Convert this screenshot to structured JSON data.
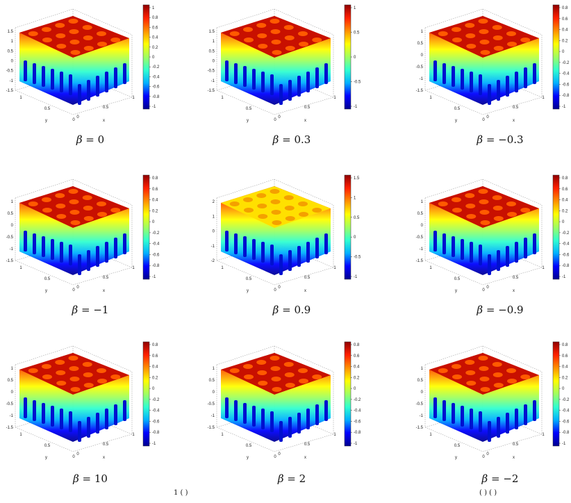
{
  "figure": {
    "panels": [
      {
        "caption_prefix": "β",
        "caption_value": "= 0",
        "colorbar": {
          "ticks": [
            "1",
            "0.8",
            "0.6",
            "0.4",
            "0.2",
            "0",
            "-0.2",
            "-0.4",
            "-0.6",
            "-0.8",
            "-1"
          ]
        },
        "z_ticks": [
          "1.5",
          "1",
          "0.5",
          "0",
          "-0.5",
          "-1",
          "-1.5"
        ],
        "surface_style": "red"
      },
      {
        "caption_prefix": "β",
        "caption_value": "= 0.3",
        "colorbar": {
          "ticks": [
            "1",
            "0.5",
            "0",
            "-0.5",
            "-1"
          ]
        },
        "z_ticks": [
          "1.5",
          "1",
          "0.5",
          "0",
          "-0.5",
          "-1",
          "-1.5"
        ],
        "surface_style": "red"
      },
      {
        "caption_prefix": "β",
        "caption_value": "= −0.3",
        "colorbar": {
          "ticks": [
            "0.8",
            "0.6",
            "0.4",
            "0.2",
            "0",
            "-0.2",
            "-0.4",
            "-0.6",
            "-0.8",
            "-1"
          ]
        },
        "z_ticks": [
          "1",
          "0.5",
          "0",
          "-0.5",
          "-1",
          "-1.5"
        ],
        "surface_style": "red"
      },
      {
        "caption_prefix": "β",
        "caption_value": "= −1",
        "colorbar": {
          "ticks": [
            "0.8",
            "0.6",
            "0.4",
            "0.2",
            "0",
            "-0.2",
            "-0.4",
            "-0.6",
            "-0.8",
            "-1"
          ]
        },
        "z_ticks": [
          "1",
          "0.5",
          "0",
          "-0.5",
          "-1",
          "-1.5"
        ],
        "surface_style": "red"
      },
      {
        "caption_prefix": "β",
        "caption_value": "= 0.9",
        "colorbar": {
          "ticks": [
            "1.5",
            "1",
            "0.5",
            "0",
            "-0.5",
            "-1"
          ]
        },
        "z_ticks": [
          "2",
          "1",
          "0",
          "-1",
          "-2"
        ],
        "surface_style": "yellow"
      },
      {
        "caption_prefix": "β",
        "caption_value": "= −0.9",
        "colorbar": {
          "ticks": [
            "0.8",
            "0.6",
            "0.4",
            "0.2",
            "0",
            "-0.2",
            "-0.4",
            "-0.6",
            "-0.8",
            "-1"
          ]
        },
        "z_ticks": [
          "1",
          "0.5",
          "0",
          "-0.5",
          "-1",
          "-1.5"
        ],
        "surface_style": "red"
      },
      {
        "caption_prefix": "β",
        "caption_value": "= 10",
        "colorbar": {
          "ticks": [
            "0.8",
            "0.6",
            "0.4",
            "0.2",
            "0",
            "-0.2",
            "-0.4",
            "-0.6",
            "-0.8",
            "-1"
          ]
        },
        "z_ticks": [
          "1",
          "0.5",
          "0",
          "-0.5",
          "-1",
          "-1.5"
        ],
        "surface_style": "red"
      },
      {
        "caption_prefix": "β",
        "caption_value": "= 2",
        "colorbar": {
          "ticks": [
            "0.8",
            "0.6",
            "0.4",
            "0.2",
            "0",
            "-0.2",
            "-0.4",
            "-0.6",
            "-0.8",
            "-1"
          ]
        },
        "z_ticks": [
          "1",
          "0.5",
          "0",
          "-0.5",
          "-1",
          "-1.5"
        ],
        "surface_style": "red"
      },
      {
        "caption_prefix": "β",
        "caption_value": "= −2",
        "colorbar": {
          "ticks": [
            "0.8",
            "0.6",
            "0.4",
            "0.2",
            "0",
            "-0.2",
            "-0.4",
            "-0.6",
            "-0.8",
            "-1"
          ]
        },
        "z_ticks": [
          "1",
          "0.5",
          "0",
          "-0.5",
          "-1",
          "-1.5"
        ],
        "surface_style": "red"
      }
    ],
    "axes": {
      "x_ticks": [
        "0",
        "0.5",
        "1"
      ],
      "y_ticks": [
        "0",
        "0.5",
        "1"
      ],
      "x_label": "x",
      "y_label": "y"
    },
    "colormap": [
      "#00008f",
      "#0000ff",
      "#00b0ff",
      "#30ffd0",
      "#a0ff60",
      "#ffff00",
      "#ff9000",
      "#ff2000",
      "#8f0000"
    ]
  },
  "footer": {
    "left_fragment": "1   ( )",
    "right_fragment": "(        )   ( )"
  }
}
